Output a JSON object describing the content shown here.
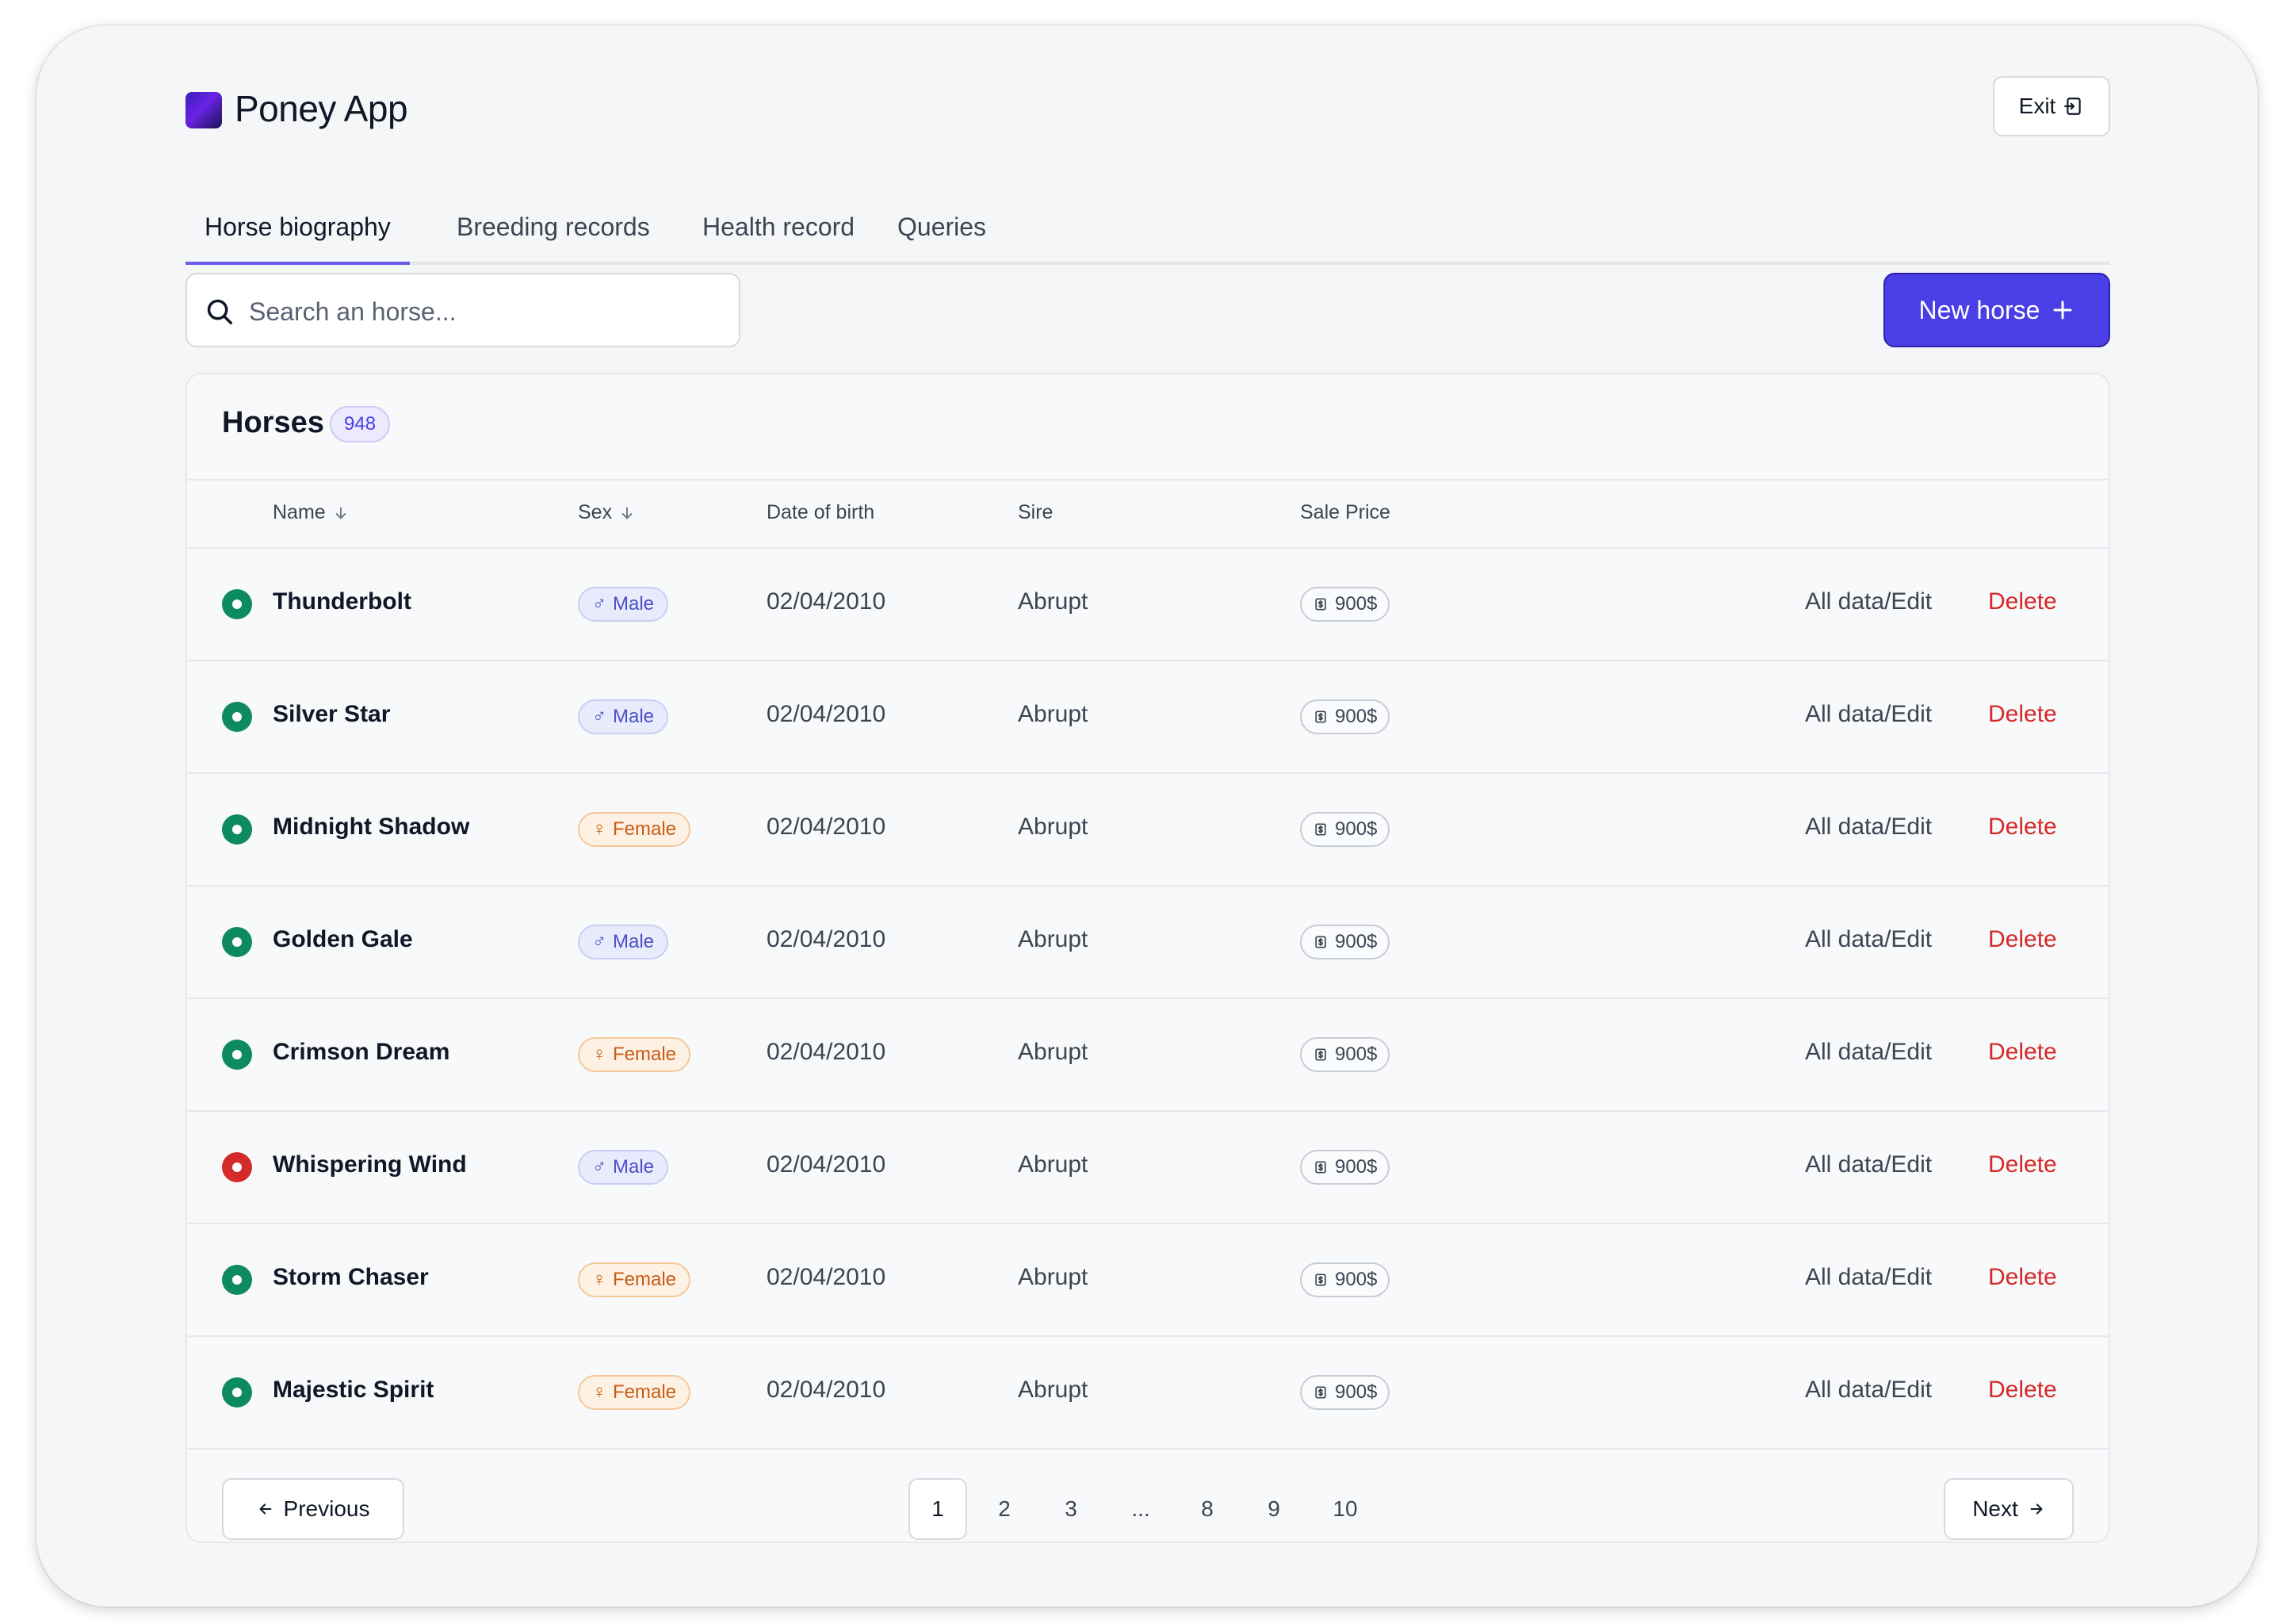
{
  "app": {
    "name": "Poney App",
    "exit_label": "Exit"
  },
  "tabs": [
    {
      "label": "Horse biography",
      "active": true
    },
    {
      "label": "Breeding records",
      "active": false
    },
    {
      "label": "Health record",
      "active": false
    },
    {
      "label": "Queries",
      "active": false
    }
  ],
  "search": {
    "placeholder": "Search an horse...",
    "value": ""
  },
  "actions": {
    "new_horse_label": "New horse"
  },
  "table": {
    "title": "Horses",
    "count": "948",
    "columns": {
      "name": "Name",
      "sex": "Sex",
      "dob": "Date of birth",
      "sire": "Sire",
      "price": "Sale Price"
    },
    "rows": [
      {
        "name": "Thunderbolt",
        "status": "active",
        "sex": "Male",
        "sex_symbol": "♂",
        "dob": "02/04/2010",
        "sire": "Abrupt",
        "price": "900$",
        "edit": "All data/Edit",
        "delete": "Delete"
      },
      {
        "name": "Silver Star",
        "status": "active",
        "sex": "Male",
        "sex_symbol": "♂",
        "dob": "02/04/2010",
        "sire": "Abrupt",
        "price": "900$",
        "edit": "All data/Edit",
        "delete": "Delete"
      },
      {
        "name": "Midnight Shadow",
        "status": "active",
        "sex": "Female",
        "sex_symbol": "♀",
        "dob": "02/04/2010",
        "sire": "Abrupt",
        "price": "900$",
        "edit": "All data/Edit",
        "delete": "Delete"
      },
      {
        "name": "Golden Gale",
        "status": "active",
        "sex": "Male",
        "sex_symbol": "♂",
        "dob": "02/04/2010",
        "sire": "Abrupt",
        "price": "900$",
        "edit": "All data/Edit",
        "delete": "Delete"
      },
      {
        "name": "Crimson Dream",
        "status": "active",
        "sex": "Female",
        "sex_symbol": "♀",
        "dob": "02/04/2010",
        "sire": "Abrupt",
        "price": "900$",
        "edit": "All data/Edit",
        "delete": "Delete"
      },
      {
        "name": "Whispering Wind",
        "status": "inactive",
        "sex": "Male",
        "sex_symbol": "♂",
        "dob": "02/04/2010",
        "sire": "Abrupt",
        "price": "900$",
        "edit": "All data/Edit",
        "delete": "Delete"
      },
      {
        "name": "Storm Chaser",
        "status": "active",
        "sex": "Female",
        "sex_symbol": "♀",
        "dob": "02/04/2010",
        "sire": "Abrupt",
        "price": "900$",
        "edit": "All data/Edit",
        "delete": "Delete"
      },
      {
        "name": "Majestic Spirit",
        "status": "active",
        "sex": "Female",
        "sex_symbol": "♀",
        "dob": "02/04/2010",
        "sire": "Abrupt",
        "price": "900$",
        "edit": "All data/Edit",
        "delete": "Delete"
      }
    ]
  },
  "pagination": {
    "previous_label": "Previous",
    "next_label": "Next",
    "pages": [
      "1",
      "2",
      "3",
      "...",
      "8",
      "9",
      "10"
    ],
    "current": "1"
  },
  "colors": {
    "accent": "#4a3fe6",
    "active_status": "#0d8a5f",
    "inactive_status": "#d42a2a",
    "delete_text": "#d42a2a",
    "male_badge_text": "#4a50c8",
    "female_badge_text": "#c95b16"
  },
  "icons": {
    "logo": "gradient-square-logo",
    "exit": "exit-door-icon",
    "search": "search-icon",
    "new": "plus-icon",
    "sort": "arrow-down-icon",
    "price": "dollar-bill-icon",
    "previous": "arrow-left-icon",
    "next": "arrow-right-icon"
  }
}
